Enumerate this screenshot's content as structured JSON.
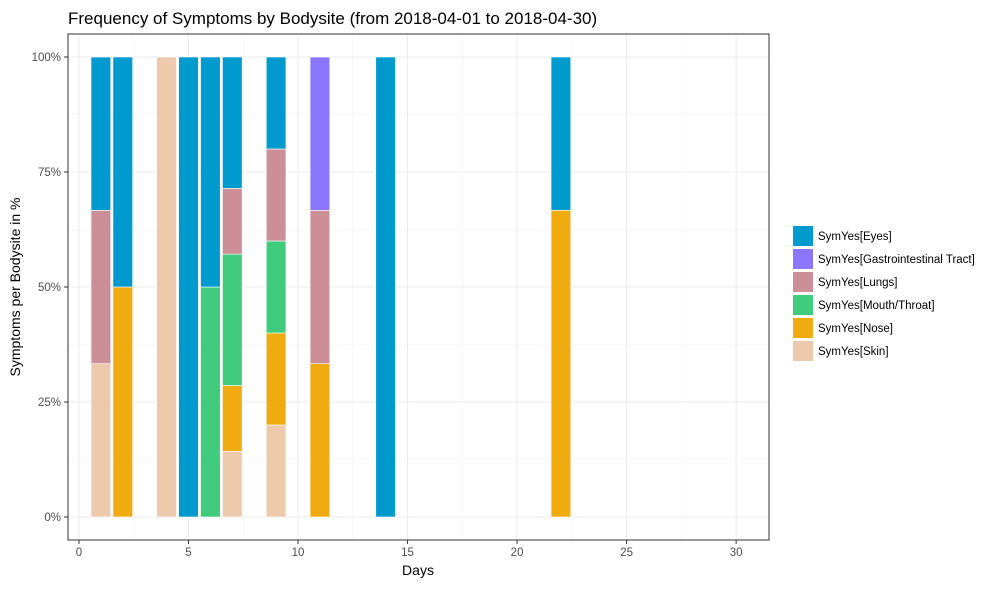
{
  "chart_data": {
    "type": "bar",
    "stacked": true,
    "normalized": true,
    "title": "Frequency of Symptoms by Bodysite (from 2018-04-01 to 2018-04-30)",
    "xlabel": "Days",
    "ylabel": "Symptoms per Bodysite in %",
    "xlim": [
      -0.5,
      31.5
    ],
    "ylim": [
      -0.05,
      1.05
    ],
    "x_ticks": [
      0,
      5,
      10,
      15,
      20,
      25,
      30
    ],
    "x_tick_labels": [
      "0",
      "5",
      "10",
      "15",
      "20",
      "25",
      "30"
    ],
    "y_ticks": [
      0,
      0.25,
      0.5,
      0.75,
      1.0
    ],
    "y_tick_labels": [
      "0%",
      "25%",
      "50%",
      "75%",
      "100%"
    ],
    "grid": true,
    "legend_position": "right",
    "x": [
      1,
      2,
      4,
      5,
      6,
      7,
      9,
      11,
      14,
      22
    ],
    "series": [
      {
        "name": "SymYes[Skin]",
        "color": "#EDCAAB",
        "values": [
          0.3333,
          0,
          1.0,
          0,
          0,
          0.1429,
          0.2,
          0,
          0,
          0
        ]
      },
      {
        "name": "SymYes[Nose]",
        "color": "#EFAB0F",
        "values": [
          0,
          0.5,
          0,
          0,
          0,
          0.1429,
          0.2,
          0.3333,
          0,
          0.6667
        ]
      },
      {
        "name": "SymYes[Mouth/Throat]",
        "color": "#40CC7C",
        "values": [
          0,
          0,
          0,
          0,
          0.5,
          0.2857,
          0.2,
          0,
          0,
          0
        ]
      },
      {
        "name": "SymYes[Lungs]",
        "color": "#CC8F98",
        "values": [
          0.3333,
          0,
          0,
          0,
          0,
          0.1429,
          0.2,
          0.3333,
          0,
          0
        ]
      },
      {
        "name": "SymYes[Gastrointestinal Tract]",
        "color": "#8B76FF",
        "values": [
          0,
          0,
          0,
          0,
          0,
          0,
          0,
          0.3333,
          0,
          0
        ]
      },
      {
        "name": "SymYes[Eyes]",
        "color": "#009ACF",
        "values": [
          0.3333,
          0.5,
          0,
          1.0,
          0.5,
          0.2857,
          0.2,
          0,
          1.0,
          0.3333
        ]
      }
    ],
    "legend_order": [
      "SymYes[Eyes]",
      "SymYes[Gastrointestinal Tract]",
      "SymYes[Lungs]",
      "SymYes[Mouth/Throat]",
      "SymYes[Nose]",
      "SymYes[Skin]"
    ]
  }
}
